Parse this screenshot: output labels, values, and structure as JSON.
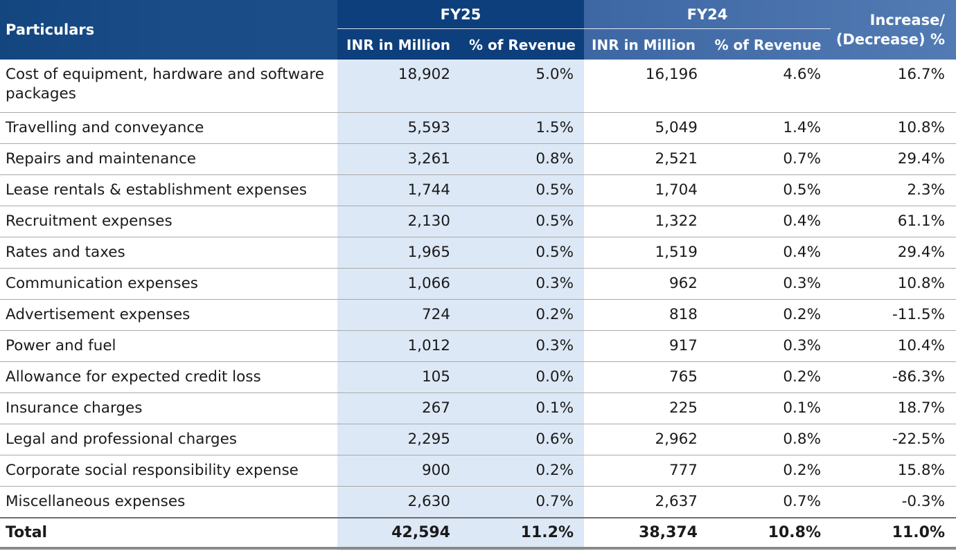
{
  "header": {
    "particulars": "Particulars",
    "fy25": "FY25",
    "fy24": "FY24",
    "increase_line1": "Increase/",
    "increase_line2": "(Decrease) %",
    "inr_fy25": "INR in Million",
    "pct_fy25": "% of Revenue",
    "inr_fy24": "INR in Million",
    "pct_fy24": "% of Revenue"
  },
  "rows": [
    {
      "label": "Cost of equipment, hardware and software packages",
      "fy25_inr": "18,902",
      "fy25_pct": "5.0%",
      "fy24_inr": "16,196",
      "fy24_pct": "4.6%",
      "change": "16.7%"
    },
    {
      "label": "Travelling and conveyance",
      "fy25_inr": "5,593",
      "fy25_pct": "1.5%",
      "fy24_inr": "5,049",
      "fy24_pct": "1.4%",
      "change": "10.8%"
    },
    {
      "label": "Repairs and maintenance",
      "fy25_inr": "3,261",
      "fy25_pct": "0.8%",
      "fy24_inr": "2,521",
      "fy24_pct": "0.7%",
      "change": "29.4%"
    },
    {
      "label": "Lease rentals & establishment expenses",
      "fy25_inr": "1,744",
      "fy25_pct": "0.5%",
      "fy24_inr": "1,704",
      "fy24_pct": "0.5%",
      "change": "2.3%"
    },
    {
      "label": "Recruitment expenses",
      "fy25_inr": "2,130",
      "fy25_pct": "0.5%",
      "fy24_inr": "1,322",
      "fy24_pct": "0.4%",
      "change": "61.1%"
    },
    {
      "label": "Rates and taxes",
      "fy25_inr": "1,965",
      "fy25_pct": "0.5%",
      "fy24_inr": "1,519",
      "fy24_pct": "0.4%",
      "change": "29.4%"
    },
    {
      "label": "Communication expenses",
      "fy25_inr": "1,066",
      "fy25_pct": "0.3%",
      "fy24_inr": "962",
      "fy24_pct": "0.3%",
      "change": "10.8%"
    },
    {
      "label": "Advertisement expenses",
      "fy25_inr": "724",
      "fy25_pct": "0.2%",
      "fy24_inr": "818",
      "fy24_pct": "0.2%",
      "change": "-11.5%"
    },
    {
      "label": "Power and fuel",
      "fy25_inr": "1,012",
      "fy25_pct": "0.3%",
      "fy24_inr": "917",
      "fy24_pct": "0.3%",
      "change": "10.4%"
    },
    {
      "label": "Allowance for expected credit loss",
      "fy25_inr": "105",
      "fy25_pct": "0.0%",
      "fy24_inr": "765",
      "fy24_pct": "0.2%",
      "change": "-86.3%"
    },
    {
      "label": "Insurance charges",
      "fy25_inr": "267",
      "fy25_pct": "0.1%",
      "fy24_inr": "225",
      "fy24_pct": "0.1%",
      "change": "18.7%"
    },
    {
      "label": "Legal and professional charges",
      "fy25_inr": "2,295",
      "fy25_pct": "0.6%",
      "fy24_inr": "2,962",
      "fy24_pct": "0.8%",
      "change": "-22.5%"
    },
    {
      "label": "Corporate social responsibility expense",
      "fy25_inr": "900",
      "fy25_pct": "0.2%",
      "fy24_inr": "777",
      "fy24_pct": "0.2%",
      "change": "15.8%"
    },
    {
      "label": "Miscellaneous expenses",
      "fy25_inr": "2,630",
      "fy25_pct": "0.7%",
      "fy24_inr": "2,637",
      "fy24_pct": "0.7%",
      "change": "-0.3%"
    }
  ],
  "total": {
    "label": "Total",
    "fy25_inr": "42,594",
    "fy25_pct": "11.2%",
    "fy24_inr": "38,374",
    "fy24_pct": "10.8%",
    "change": "11.0%"
  },
  "colors": {
    "header_dark": "#0d3f7c",
    "header_mid": "#1d4f8a",
    "header_light": "#4a73ad",
    "fy25_shade": "#dde8f6"
  }
}
